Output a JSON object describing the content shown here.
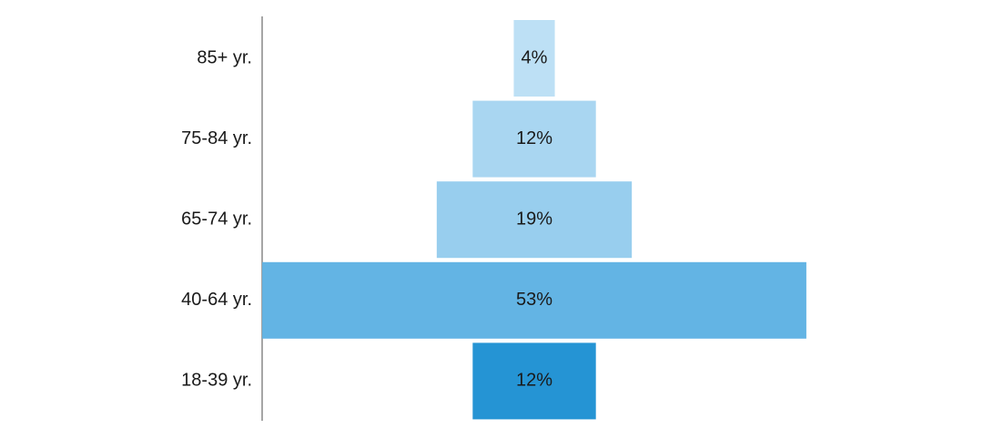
{
  "chart_data": {
    "type": "funnel",
    "categories": [
      "85+ yr.",
      "75-84 yr.",
      "65-74 yr.",
      "40-64 yr.",
      "18-39 yr."
    ],
    "values": [
      4,
      12,
      19,
      53,
      12
    ],
    "value_labels": [
      "4%",
      "12%",
      "19%",
      "53%",
      "12%"
    ],
    "colors": [
      "#bde0f5",
      "#a9d6f1",
      "#98ceee",
      "#63b4e4",
      "#2594d4"
    ]
  }
}
